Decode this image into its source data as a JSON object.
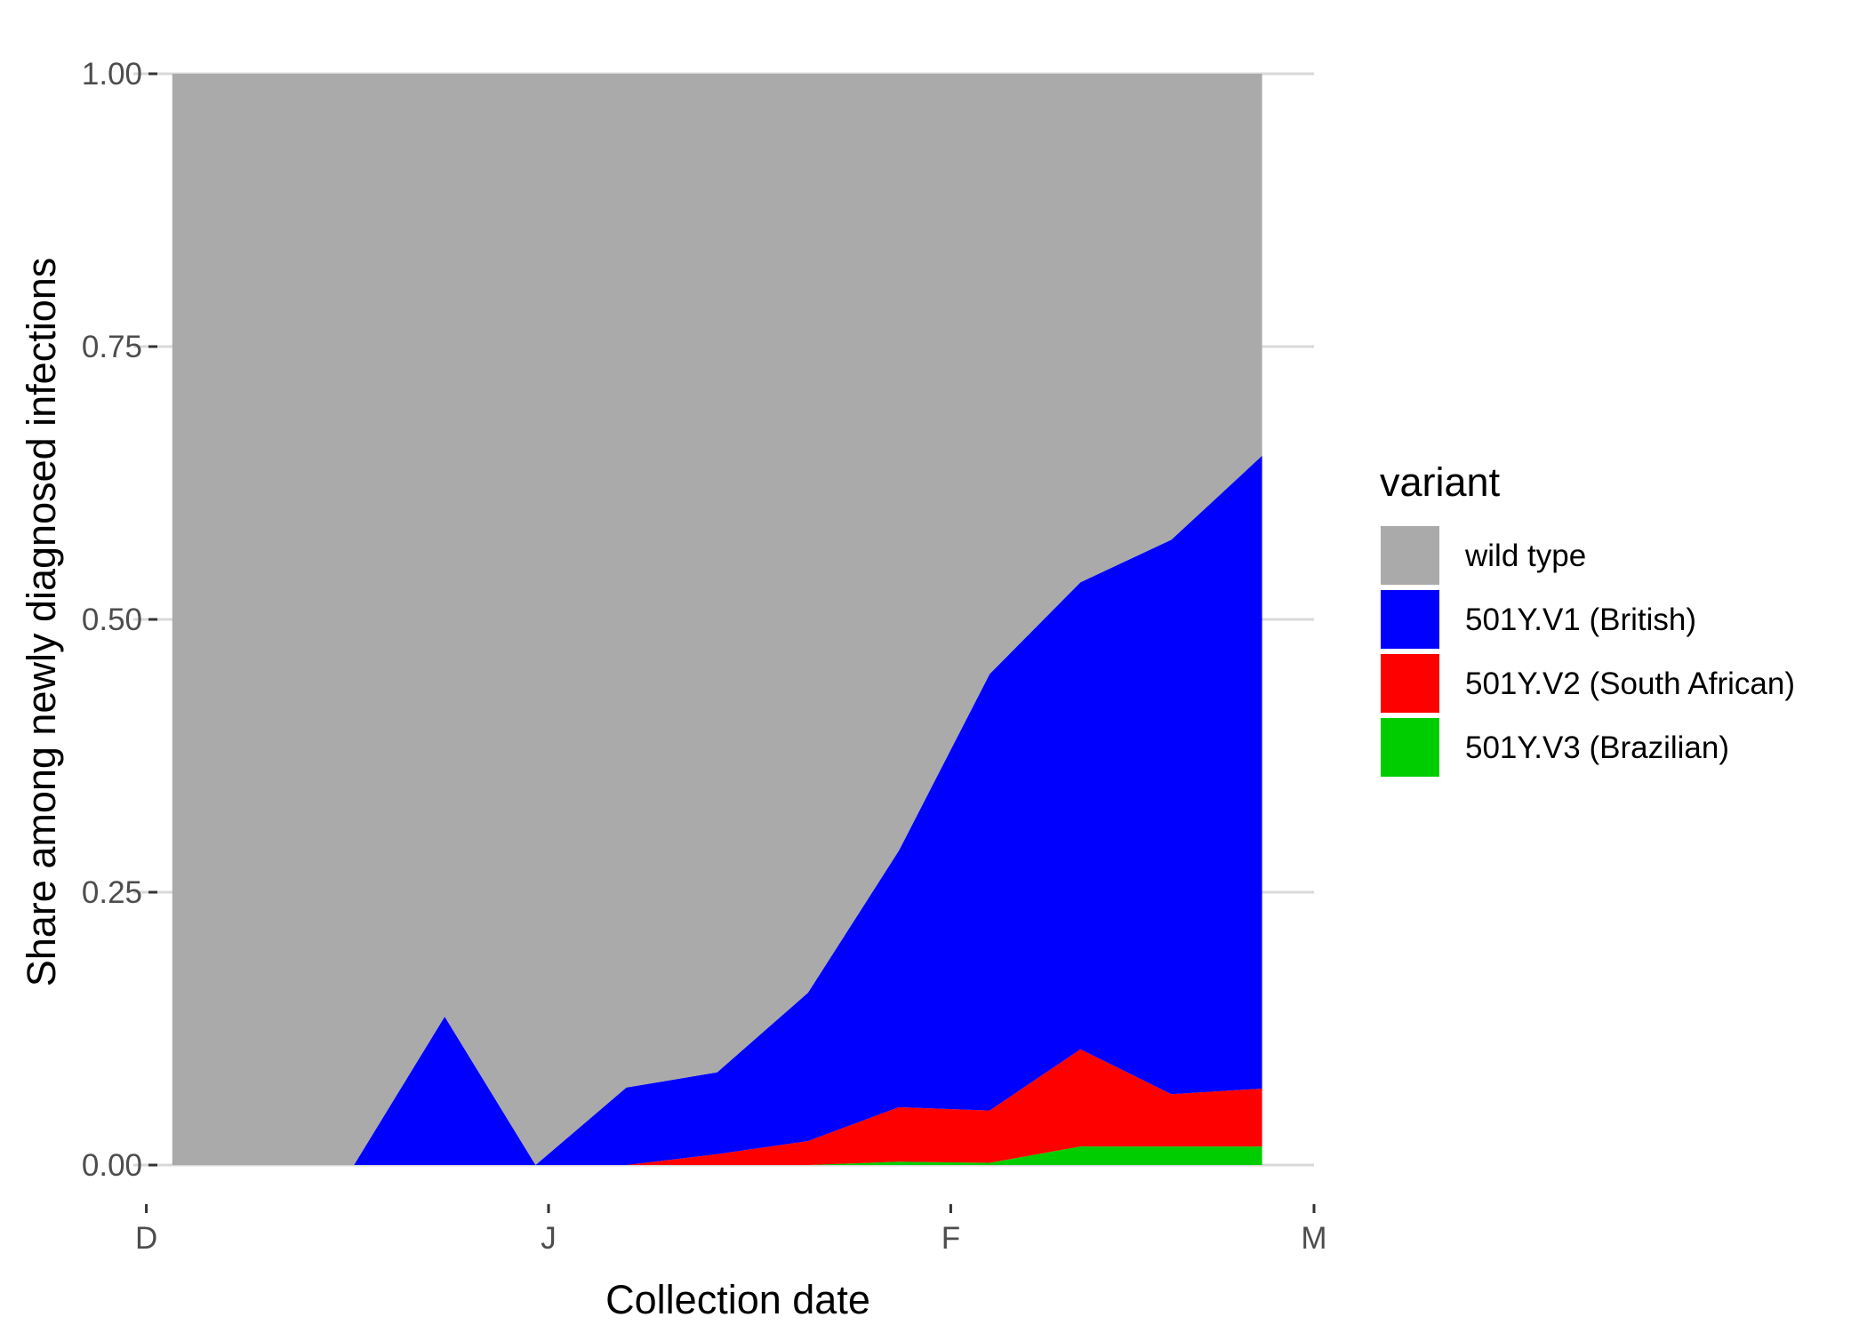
{
  "chart_data": {
    "type": "area",
    "stacked": true,
    "xlabel": "Collection date",
    "ylabel": "Share among newly diagnosed infections",
    "xlim": [
      "2020-11-30",
      "2021-03-01"
    ],
    "ylim": [
      0,
      1
    ],
    "x_ticks": [
      {
        "label": "D",
        "date": "2020-12-01"
      },
      {
        "label": "J",
        "date": "2021-01-01"
      },
      {
        "label": "F",
        "date": "2021-02-01"
      },
      {
        "label": "M",
        "date": "2021-03-01"
      }
    ],
    "y_ticks": [
      "0.00",
      "0.25",
      "0.50",
      "0.75",
      "1.00"
    ],
    "grid": "horizontal",
    "legend_title": "variant",
    "legend_position": "right",
    "x": [
      "2020-12-03",
      "2020-12-10",
      "2020-12-17",
      "2020-12-24",
      "2020-12-31",
      "2021-01-07",
      "2021-01-14",
      "2021-01-21",
      "2021-01-28",
      "2021-02-04",
      "2021-02-11",
      "2021-02-18",
      "2021-02-25"
    ],
    "series": [
      {
        "name": "501Y.V3 (Brazilian)",
        "color": "#00cd00",
        "values": [
          0,
          0,
          0,
          0,
          0,
          0,
          0,
          0,
          0.003,
          0.002,
          0.017,
          0.017,
          0.017
        ]
      },
      {
        "name": "501Y.V2 (South African)",
        "color": "#ff0000",
        "values": [
          0,
          0,
          0,
          0,
          0,
          0,
          0.01,
          0.022,
          0.05,
          0.048,
          0.089,
          0.048,
          0.053
        ]
      },
      {
        "name": "501Y.V1 (British)",
        "color": "#0000ff",
        "values": [
          0,
          0,
          0,
          0.136,
          0,
          0.071,
          0.075,
          0.136,
          0.235,
          0.4,
          0.428,
          0.508,
          0.58
        ]
      },
      {
        "name": "wild type",
        "color": "#aaaaaa",
        "values": [
          1,
          1,
          1,
          0.864,
          1,
          0.929,
          0.915,
          0.842,
          0.712,
          0.55,
          0.466,
          0.427,
          0.35
        ]
      }
    ],
    "legend_order": [
      "wild type",
      "501Y.V1 (British)",
      "501Y.V2 (South African)",
      "501Y.V3 (Brazilian)"
    ]
  }
}
